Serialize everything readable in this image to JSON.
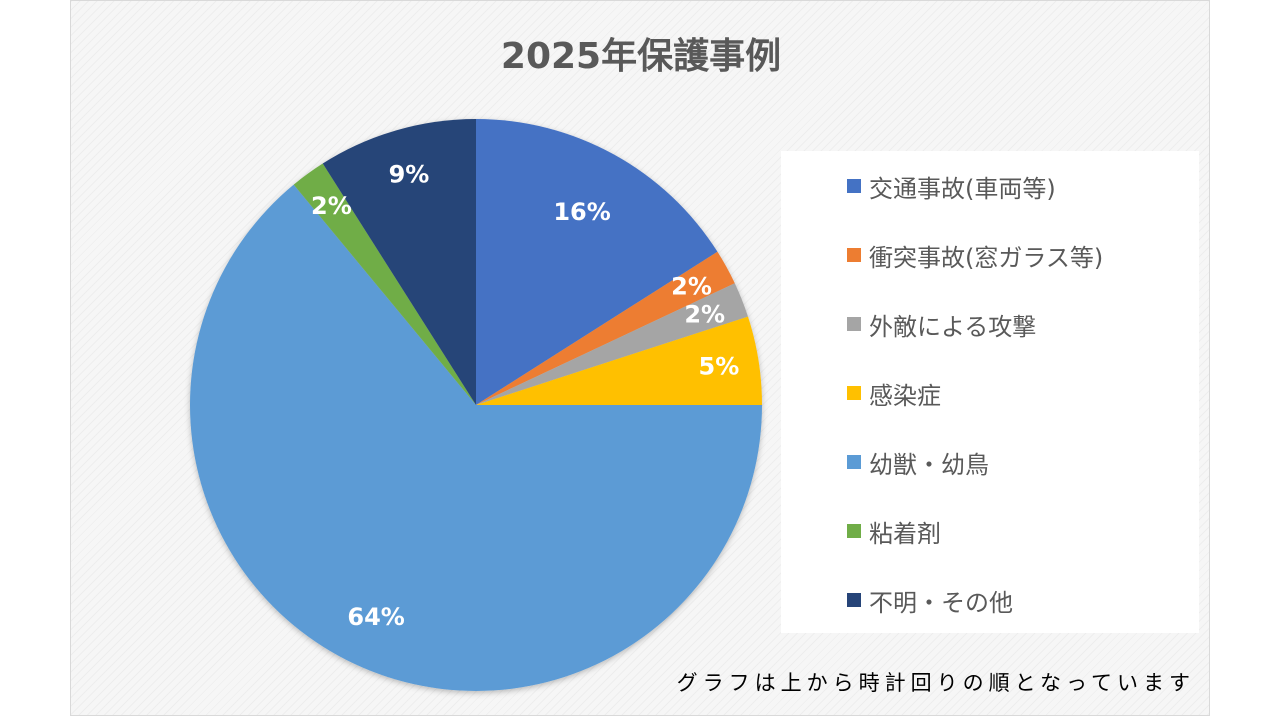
{
  "chart_data": {
    "type": "pie",
    "title": "2025年保護事例",
    "start_angle_deg": 0,
    "direction": "clockwise",
    "legend_position": "right",
    "slices": [
      {
        "label": "交通事故(車両等)",
        "value": 16,
        "display": "16%",
        "color": "#4472C4"
      },
      {
        "label": "衝突事故(窓ガラス等)",
        "value": 2,
        "display": "2%",
        "color": "#ED7D31"
      },
      {
        "label": "外敵による攻撃",
        "value": 2,
        "display": "2%",
        "color": "#A5A5A5"
      },
      {
        "label": "感染症",
        "value": 5,
        "display": "5%",
        "color": "#FFC000"
      },
      {
        "label": "幼獣・幼鳥",
        "value": 64,
        "display": "64%",
        "color": "#5B9BD5"
      },
      {
        "label": "粘着剤",
        "value": 2,
        "display": "2%",
        "color": "#70AD47"
      },
      {
        "label": "不明・その他",
        "value": 9,
        "display": "9%",
        "color": "#264478"
      }
    ]
  },
  "footnote": "グラフは上から時計回りの順となっています"
}
